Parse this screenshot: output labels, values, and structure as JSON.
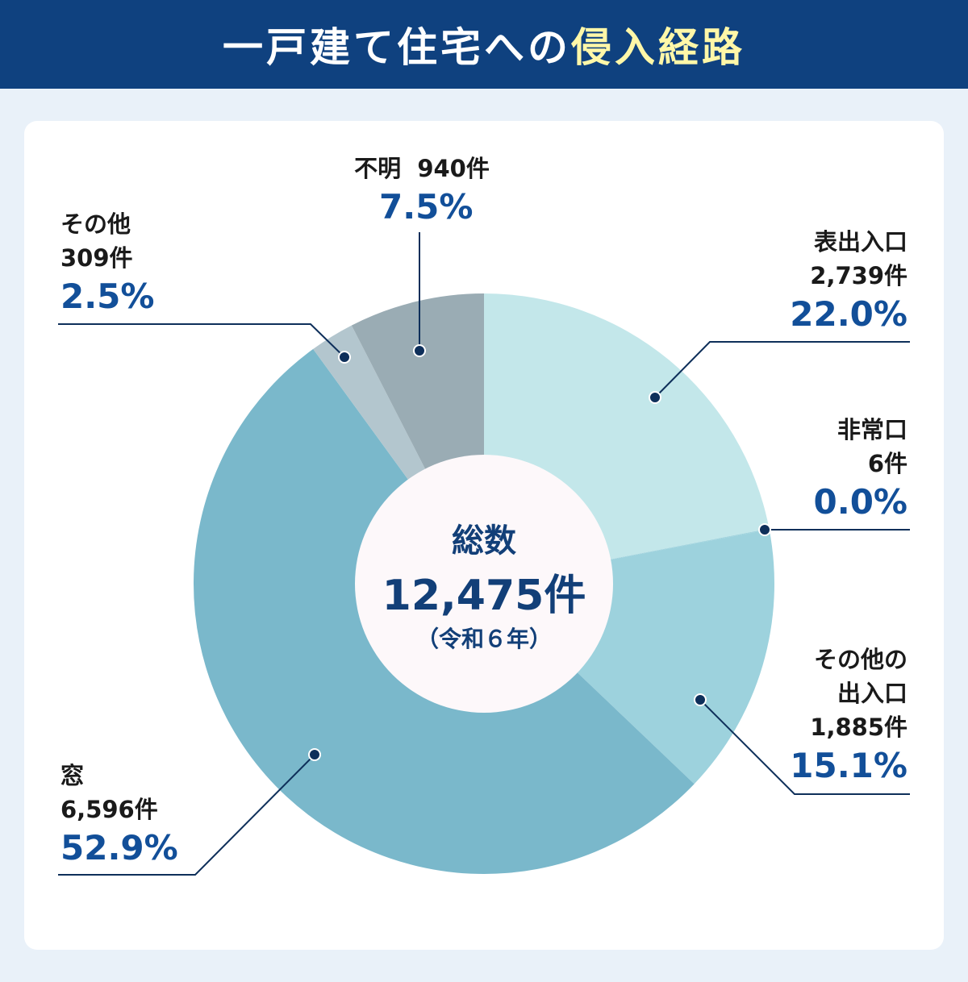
{
  "header": {
    "title_main": "一戸建て住宅への",
    "title_highlight": "侵入経路"
  },
  "center": {
    "label": "総数",
    "total": "12,475件",
    "year": "（令和６年）"
  },
  "chart_data": {
    "type": "pie",
    "variant": "donut",
    "start": "top, clockwise",
    "categories": [
      "表出入口",
      "非常口",
      "その他の出入口",
      "窓",
      "その他",
      "不明"
    ],
    "counts": [
      2739,
      6,
      1885,
      6596,
      309,
      940
    ],
    "values": [
      22.0,
      0.0,
      15.1,
      52.9,
      2.5,
      7.5
    ],
    "colors": [
      "#c3e7ea",
      "#9dd2dd",
      "#9dd2dd",
      "#7ab8cb",
      "#b3c6ce",
      "#9aacb4"
    ],
    "labels": [
      {
        "name": "表出入口",
        "count": "2,739件",
        "pct": "22.0%"
      },
      {
        "name": "非常口",
        "count": "6件",
        "pct": "0.0%"
      },
      {
        "name": "その他の出入口",
        "name2": "出入口",
        "name1": "その他の",
        "count": "1,885件",
        "pct": "15.1%"
      },
      {
        "name": "窓",
        "count": "6,596件",
        "pct": "52.9%"
      },
      {
        "name": "その他",
        "count": "309件",
        "pct": "2.5%"
      },
      {
        "name": "不明",
        "count": "940件",
        "pct": "7.5%"
      }
    ]
  }
}
